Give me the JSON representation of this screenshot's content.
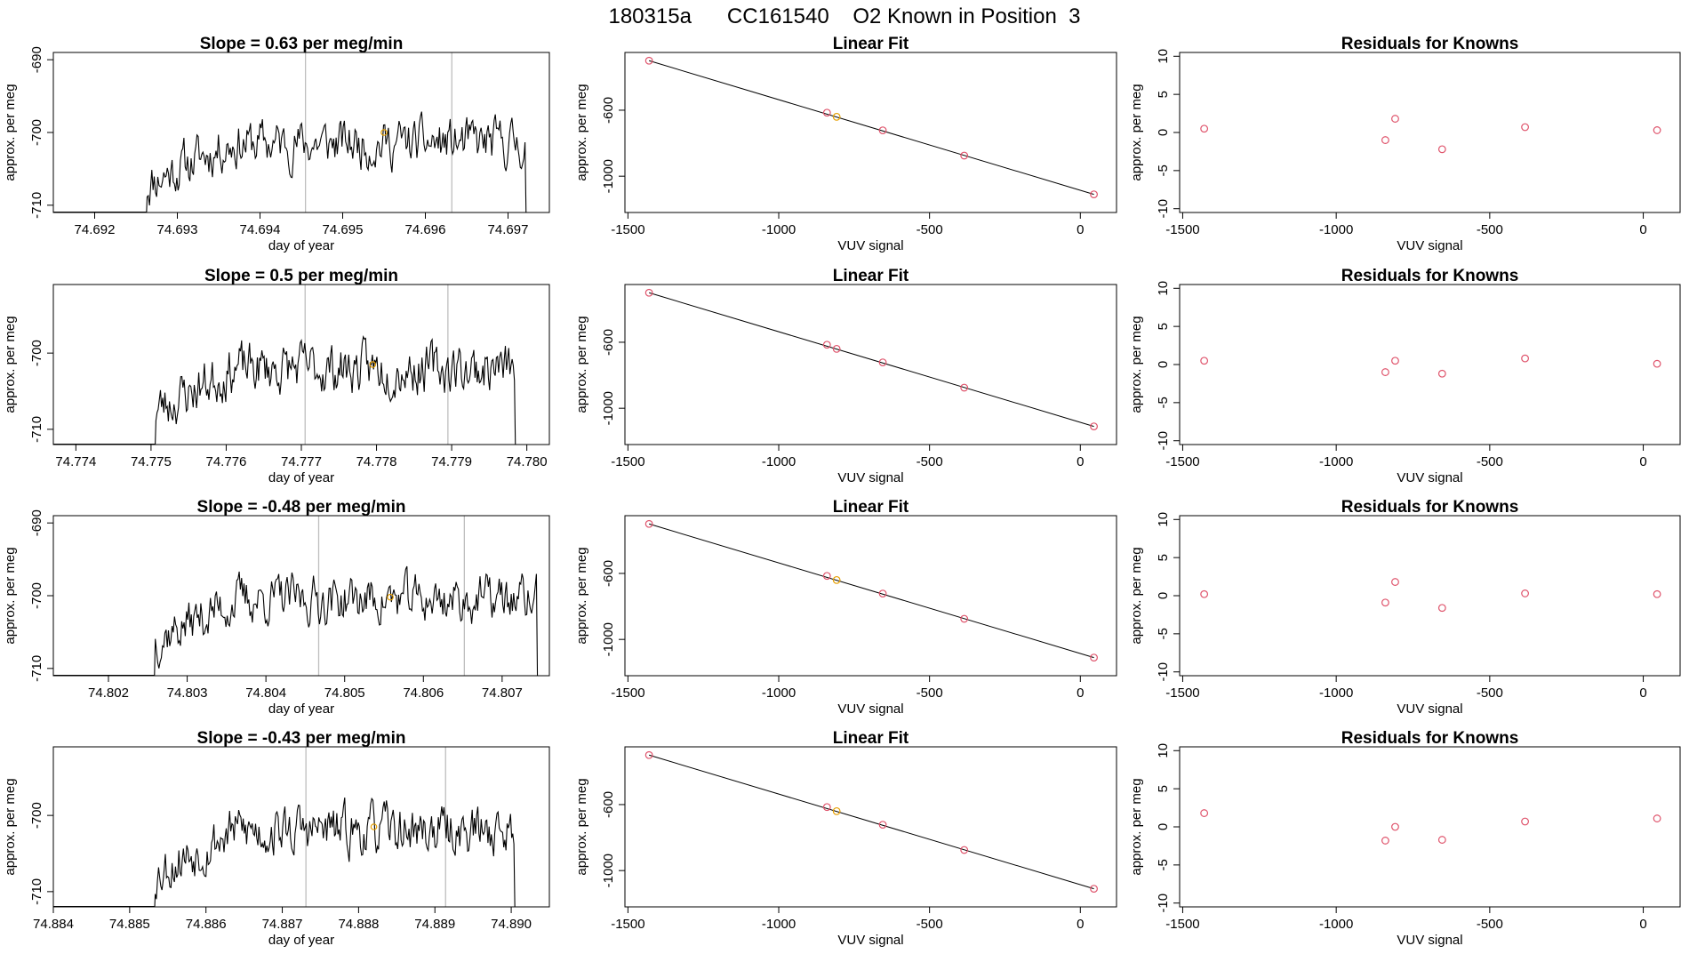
{
  "figure_title": "180315a      CC161540    O2 Known in Position  3",
  "colors": {
    "trace": "#000000",
    "marker_orange": "#E69F00",
    "marker_red": "#DF536B",
    "vertical_line": "#bebebe",
    "frame": "#000000",
    "fit_line": "#000000"
  },
  "chart_data": [
    {
      "type": "line",
      "row": 1,
      "title": "Slope =  0.63  per meg/min",
      "xlabel": "day of year",
      "ylabel": "approx. per meg",
      "xlim": [
        74.6915,
        74.6975
      ],
      "ylim": [
        -711,
        -689
      ],
      "x_ticks": [
        "74.692",
        "74.693",
        "74.694",
        "74.695",
        "74.696",
        "74.697"
      ],
      "y_ticks": [
        "-690",
        "-700",
        "-710"
      ],
      "x_start": 74.69262,
      "x_end": 74.69722,
      "seed": 11,
      "level": -701.5,
      "mean_point": {
        "x": 74.6955,
        "y": -700.0
      },
      "vertical_lines": [
        74.69455,
        74.69632
      ]
    },
    {
      "type": "scatter",
      "row": 1,
      "title": "Linear Fit",
      "xlabel": "VUV signal",
      "ylabel": "approx. per meg",
      "xlim": [
        -1510,
        120
      ],
      "ylim": [
        -1220,
        -250
      ],
      "x_ticks": [
        "-1500",
        "-1000",
        "-500",
        "0"
      ],
      "y_ticks": [
        "-600",
        "-1000"
      ],
      "points": [
        {
          "x": -1430,
          "y": -300,
          "color": "red"
        },
        {
          "x": -840,
          "y": -615,
          "color": "red"
        },
        {
          "x": -808,
          "y": -640,
          "color": "orange"
        },
        {
          "x": -655,
          "y": -722,
          "color": "red"
        },
        {
          "x": -385,
          "y": -875,
          "color": "red"
        },
        {
          "x": 45,
          "y": -1110,
          "color": "red"
        }
      ],
      "fit_line": {
        "x": [
          -1430,
          45
        ],
        "y": [
          -300,
          -1110
        ]
      }
    },
    {
      "type": "scatter",
      "row": 1,
      "title": "Residuals for Knowns",
      "xlabel": "VUV signal",
      "ylabel": "approx. per meg",
      "xlim": [
        -1510,
        120
      ],
      "ylim": [
        -10.5,
        10.5
      ],
      "x_ticks": [
        "-1500",
        "-1000",
        "-500",
        "0"
      ],
      "y_ticks": [
        "10",
        "5",
        "0",
        "-5",
        "-10"
      ],
      "points": [
        {
          "x": -1430,
          "y": 0.5
        },
        {
          "x": -840,
          "y": -1.0
        },
        {
          "x": -808,
          "y": 1.8
        },
        {
          "x": -655,
          "y": -2.2
        },
        {
          "x": -385,
          "y": 0.7
        },
        {
          "x": 45,
          "y": 0.3
        }
      ]
    },
    {
      "type": "line",
      "row": 2,
      "title": "Slope =  0.5  per meg/min",
      "xlabel": "day of year",
      "ylabel": "approx. per meg",
      "xlim": [
        74.7737,
        74.7803
      ],
      "ylim": [
        -712,
        -691
      ],
      "x_ticks": [
        "74.774",
        "74.775",
        "74.776",
        "74.777",
        "74.778",
        "74.779",
        "74.780"
      ],
      "y_ticks": [
        "-700",
        "-710"
      ],
      "x_start": 74.77505,
      "x_end": 74.77985,
      "seed": 23,
      "level": -702.0,
      "mean_point": {
        "x": 74.77795,
        "y": -701.5
      },
      "vertical_lines": [
        74.77705,
        74.77895
      ]
    },
    {
      "type": "scatter",
      "row": 2,
      "title": "Linear Fit",
      "xlabel": "VUV signal",
      "ylabel": "approx. per meg",
      "xlim": [
        -1510,
        120
      ],
      "ylim": [
        -1220,
        -250
      ],
      "x_ticks": [
        "-1500",
        "-1000",
        "-500",
        "0"
      ],
      "y_ticks": [
        "-600",
        "-1000"
      ],
      "points": [
        {
          "x": -1430,
          "y": -300,
          "color": "red"
        },
        {
          "x": -840,
          "y": -615,
          "color": "red"
        },
        {
          "x": -808,
          "y": -640,
          "color": "red"
        },
        {
          "x": -655,
          "y": -722,
          "color": "red"
        },
        {
          "x": -385,
          "y": -875,
          "color": "red"
        },
        {
          "x": 45,
          "y": -1110,
          "color": "red"
        }
      ],
      "fit_line": {
        "x": [
          -1430,
          45
        ],
        "y": [
          -300,
          -1110
        ]
      }
    },
    {
      "type": "scatter",
      "row": 2,
      "title": "Residuals for Knowns",
      "xlabel": "VUV signal",
      "ylabel": "approx. per meg",
      "xlim": [
        -1510,
        120
      ],
      "ylim": [
        -10.5,
        10.5
      ],
      "x_ticks": [
        "-1500",
        "-1000",
        "-500",
        "0"
      ],
      "y_ticks": [
        "10",
        "5",
        "0",
        "-5",
        "-10"
      ],
      "points": [
        {
          "x": -1430,
          "y": 0.5
        },
        {
          "x": -840,
          "y": -1.0
        },
        {
          "x": -808,
          "y": 0.5
        },
        {
          "x": -655,
          "y": -1.2
        },
        {
          "x": -385,
          "y": 0.8
        },
        {
          "x": 45,
          "y": 0.1
        }
      ]
    },
    {
      "type": "line",
      "row": 3,
      "title": "Slope =  -0.48  per meg/min",
      "xlabel": "day of year",
      "ylabel": "approx. per meg",
      "xlim": [
        74.8013,
        74.8076
      ],
      "ylim": [
        -711,
        -689
      ],
      "x_ticks": [
        "74.802",
        "74.803",
        "74.804",
        "74.805",
        "74.806",
        "74.807"
      ],
      "y_ticks": [
        "-690",
        "-700",
        "-710"
      ],
      "x_start": 74.80258,
      "x_end": 74.80745,
      "seed": 37,
      "level": -700.5,
      "mean_point": {
        "x": 74.80558,
        "y": -700.2
      },
      "vertical_lines": [
        74.80467,
        74.80652
      ]
    },
    {
      "type": "scatter",
      "row": 3,
      "title": "Linear Fit",
      "xlabel": "VUV signal",
      "ylabel": "approx. per meg",
      "xlim": [
        -1510,
        120
      ],
      "ylim": [
        -1220,
        -250
      ],
      "x_ticks": [
        "-1500",
        "-1000",
        "-500",
        "0"
      ],
      "y_ticks": [
        "-600",
        "-1000"
      ],
      "points": [
        {
          "x": -1430,
          "y": -300,
          "color": "red"
        },
        {
          "x": -840,
          "y": -615,
          "color": "red"
        },
        {
          "x": -808,
          "y": -640,
          "color": "orange"
        },
        {
          "x": -655,
          "y": -722,
          "color": "red"
        },
        {
          "x": -385,
          "y": -875,
          "color": "red"
        },
        {
          "x": 45,
          "y": -1110,
          "color": "red"
        }
      ],
      "fit_line": {
        "x": [
          -1430,
          45
        ],
        "y": [
          -300,
          -1110
        ]
      }
    },
    {
      "type": "scatter",
      "row": 3,
      "title": "Residuals for Knowns",
      "xlabel": "VUV signal",
      "ylabel": "approx. per meg",
      "xlim": [
        -1510,
        120
      ],
      "ylim": [
        -10.5,
        10.5
      ],
      "x_ticks": [
        "-1500",
        "-1000",
        "-500",
        "0"
      ],
      "y_ticks": [
        "10",
        "5",
        "0",
        "-5",
        "-10"
      ],
      "points": [
        {
          "x": -1430,
          "y": 0.2
        },
        {
          "x": -840,
          "y": -0.9
        },
        {
          "x": -808,
          "y": 1.8
        },
        {
          "x": -655,
          "y": -1.6
        },
        {
          "x": -385,
          "y": 0.3
        },
        {
          "x": 45,
          "y": 0.2
        }
      ]
    },
    {
      "type": "line",
      "row": 4,
      "title": "Slope =  -0.43  per meg/min",
      "xlabel": "day of year",
      "ylabel": "approx. per meg",
      "xlim": [
        74.884,
        74.8905
      ],
      "ylim": [
        -712,
        -691
      ],
      "x_ticks": [
        "74.884",
        "74.885",
        "74.886",
        "74.887",
        "74.888",
        "74.889",
        "74.890"
      ],
      "y_ticks": [
        "-700",
        "-710"
      ],
      "x_start": 74.88532,
      "x_end": 74.89005,
      "seed": 53,
      "level": -702.0,
      "mean_point": {
        "x": 74.8882,
        "y": -701.5
      },
      "vertical_lines": [
        74.88731,
        74.88914
      ]
    },
    {
      "type": "scatter",
      "row": 4,
      "title": "Linear Fit",
      "xlabel": "VUV signal",
      "ylabel": "approx. per meg",
      "xlim": [
        -1510,
        120
      ],
      "ylim": [
        -1220,
        -250
      ],
      "x_ticks": [
        "-1500",
        "-1000",
        "-500",
        "0"
      ],
      "y_ticks": [
        "-600",
        "-1000"
      ],
      "points": [
        {
          "x": -1430,
          "y": -300,
          "color": "red"
        },
        {
          "x": -840,
          "y": -615,
          "color": "red"
        },
        {
          "x": -808,
          "y": -640,
          "color": "orange"
        },
        {
          "x": -655,
          "y": -722,
          "color": "red"
        },
        {
          "x": -385,
          "y": -875,
          "color": "red"
        },
        {
          "x": 45,
          "y": -1110,
          "color": "red"
        }
      ],
      "fit_line": {
        "x": [
          -1430,
          45
        ],
        "y": [
          -300,
          -1110
        ]
      }
    },
    {
      "type": "scatter",
      "row": 4,
      "title": "Residuals for Knowns",
      "xlabel": "VUV signal",
      "ylabel": "approx. per meg",
      "xlim": [
        -1510,
        120
      ],
      "ylim": [
        -10.5,
        10.5
      ],
      "x_ticks": [
        "-1500",
        "-1000",
        "-500",
        "0"
      ],
      "y_ticks": [
        "10",
        "5",
        "0",
        "-5",
        "-10"
      ],
      "points": [
        {
          "x": -1430,
          "y": 1.8
        },
        {
          "x": -840,
          "y": -1.8
        },
        {
          "x": -808,
          "y": 0.0
        },
        {
          "x": -655,
          "y": -1.7
        },
        {
          "x": -385,
          "y": 0.7
        },
        {
          "x": 45,
          "y": 1.1
        }
      ]
    }
  ]
}
